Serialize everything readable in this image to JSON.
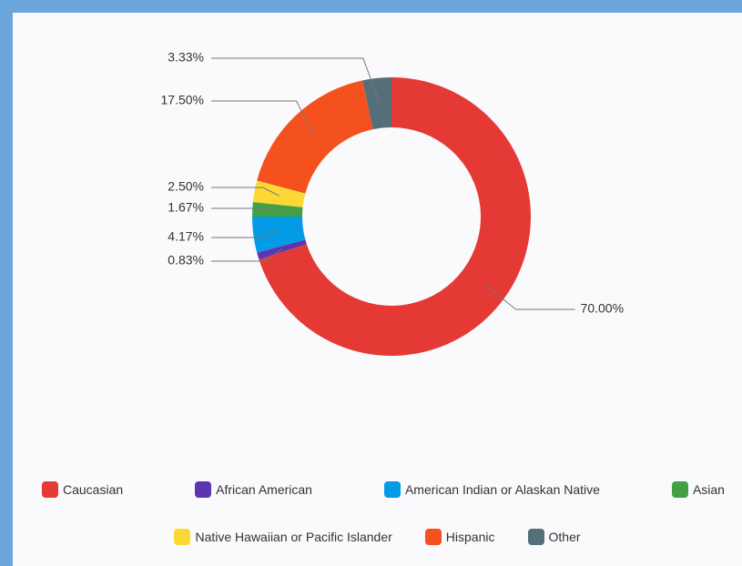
{
  "chart_data": {
    "type": "donut",
    "categories": [
      "Caucasian",
      "African American",
      "American Indian or Alaskan Native",
      "Asian",
      "Native Hawaiian or Pacific Islander",
      "Hispanic",
      "Other"
    ],
    "values": [
      70,
      0.83,
      4.17,
      1.67,
      2.5,
      17.5,
      3.33
    ],
    "value_labels": [
      "70.00%",
      "0.83%",
      "4.17%",
      "1.67%",
      "2.50%",
      "17.50%",
      "3.33%"
    ],
    "colors": [
      "#e53935",
      "#5e35b1",
      "#039be5",
      "#43a047",
      "#fdd835",
      "#f4511e",
      "#546e7a"
    ],
    "legend": "bottom"
  }
}
